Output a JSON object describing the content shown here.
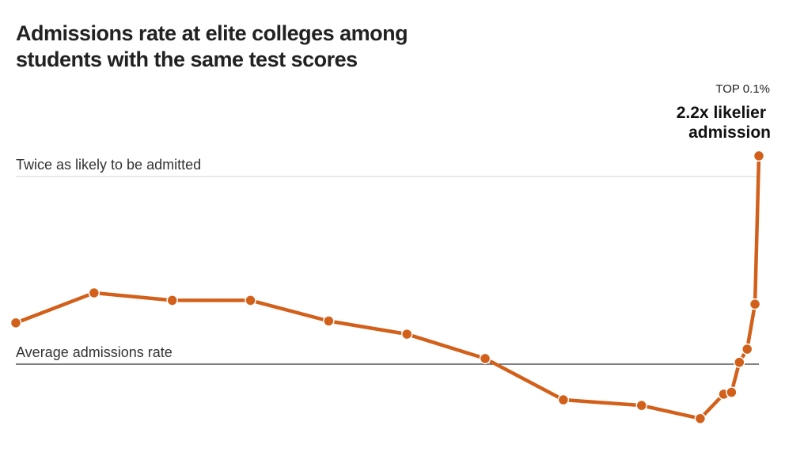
{
  "chart_data": {
    "type": "line",
    "title": "Admissions rate at elite colleges among students with the same test scores",
    "x": [
      0,
      1,
      2,
      3,
      4,
      5,
      6,
      7,
      8,
      8.75,
      9.05,
      9.15,
      9.25,
      9.35,
      9.45,
      9.5
    ],
    "series": [
      {
        "color": "#d2601a",
        "values": [
          1.22,
          1.38,
          1.34,
          1.34,
          1.23,
          1.16,
          1.03,
          0.81,
          0.78,
          0.71,
          0.84,
          0.85,
          1.01,
          1.08,
          1.32,
          2.11
        ]
      }
    ],
    "xlim": [
      0,
      9.5
    ],
    "ylim": [
      0.5,
      2.5
    ],
    "reference_lines": [
      {
        "value": 2,
        "label": "Twice as likely to be admitted",
        "color": "#dddddd"
      },
      {
        "value": 1,
        "label": "Average admissions rate",
        "color": "#333333"
      }
    ],
    "annotation": {
      "kicker": "TOP 0.1%",
      "lines": [
        "2.2x likelier",
        "admission"
      ]
    }
  }
}
